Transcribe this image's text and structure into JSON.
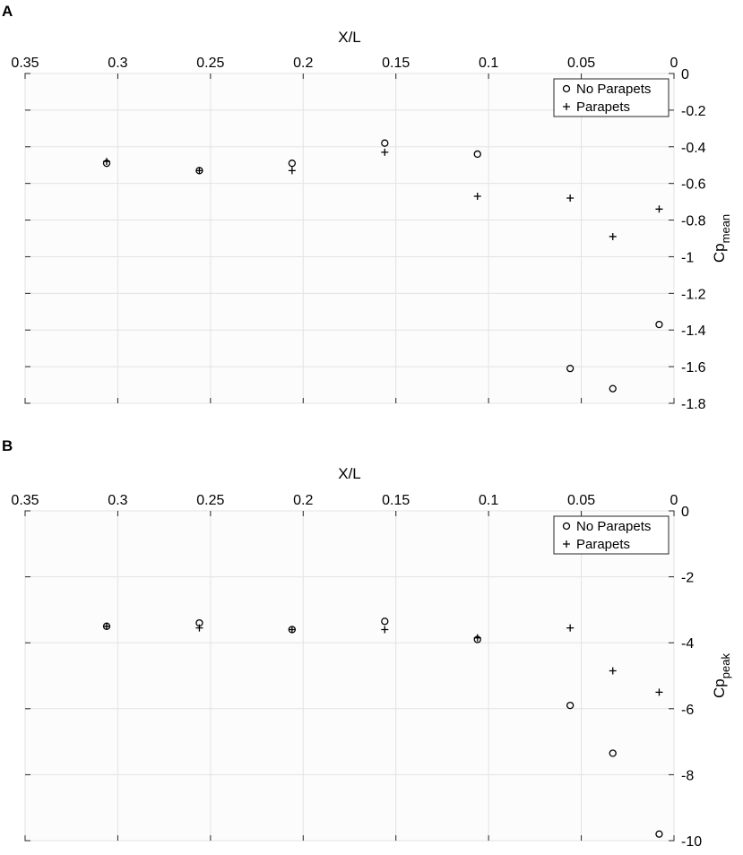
{
  "chart_data": [
    {
      "panel": "A",
      "type": "scatter",
      "xlabel": "X/L",
      "ylabel_base": "Cp",
      "ylabel_sub": "mean",
      "xlim": [
        0,
        0.35
      ],
      "x_reversed": true,
      "x_axis_position": "top",
      "y_axis_position": "right",
      "ylim": [
        -1.8,
        0
      ],
      "x_ticks": [
        "0.35",
        "0.3",
        "0.25",
        "0.2",
        "0.15",
        "0.1",
        "0.05",
        "0"
      ],
      "x_tick_values": [
        0.35,
        0.3,
        0.25,
        0.2,
        0.15,
        0.1,
        0.05,
        0
      ],
      "y_ticks": [
        "0",
        "-0.2",
        "-0.4",
        "-0.6",
        "-0.8",
        "-1",
        "-1.2",
        "-1.4",
        "-1.6",
        "-1.8"
      ],
      "y_tick_values": [
        0,
        -0.2,
        -0.4,
        -0.6,
        -0.8,
        -1,
        -1.2,
        -1.4,
        -1.6,
        -1.8
      ],
      "grid": true,
      "legend_position": "top-right",
      "series": [
        {
          "name": "No Parapets",
          "marker": "circle",
          "points": [
            {
              "x": 0.306,
              "y": -0.49
            },
            {
              "x": 0.256,
              "y": -0.53
            },
            {
              "x": 0.206,
              "y": -0.49
            },
            {
              "x": 0.156,
              "y": -0.38
            },
            {
              "x": 0.106,
              "y": -0.44
            },
            {
              "x": 0.056,
              "y": -1.61
            },
            {
              "x": 0.033,
              "y": -1.72
            },
            {
              "x": 0.008,
              "y": -1.37
            }
          ]
        },
        {
          "name": "Parapets",
          "marker": "plus",
          "points": [
            {
              "x": 0.306,
              "y": -0.48
            },
            {
              "x": 0.256,
              "y": -0.53
            },
            {
              "x": 0.206,
              "y": -0.53
            },
            {
              "x": 0.156,
              "y": -0.43
            },
            {
              "x": 0.106,
              "y": -0.67
            },
            {
              "x": 0.056,
              "y": -0.68
            },
            {
              "x": 0.033,
              "y": -0.89
            },
            {
              "x": 0.008,
              "y": -0.74
            }
          ]
        }
      ]
    },
    {
      "panel": "B",
      "type": "scatter",
      "xlabel": "X/L",
      "ylabel_base": "Cp",
      "ylabel_sub": "peak",
      "xlim": [
        0,
        0.35
      ],
      "x_reversed": true,
      "x_axis_position": "top",
      "y_axis_position": "right",
      "ylim": [
        -10,
        0
      ],
      "x_ticks": [
        "0.35",
        "0.3",
        "0.25",
        "0.2",
        "0.15",
        "0.1",
        "0.05",
        "0"
      ],
      "x_tick_values": [
        0.35,
        0.3,
        0.25,
        0.2,
        0.15,
        0.1,
        0.05,
        0
      ],
      "y_ticks": [
        "0",
        "-2",
        "-4",
        "-6",
        "-8",
        "-10"
      ],
      "y_tick_values": [
        0,
        -2,
        -4,
        -6,
        -8,
        -10
      ],
      "grid": true,
      "legend_position": "top-right",
      "series": [
        {
          "name": "No Parapets",
          "marker": "circle",
          "points": [
            {
              "x": 0.306,
              "y": -3.5
            },
            {
              "x": 0.256,
              "y": -3.4
            },
            {
              "x": 0.206,
              "y": -3.6
            },
            {
              "x": 0.156,
              "y": -3.35
            },
            {
              "x": 0.106,
              "y": -3.9
            },
            {
              "x": 0.056,
              "y": -5.9
            },
            {
              "x": 0.033,
              "y": -7.35
            },
            {
              "x": 0.008,
              "y": -9.8
            }
          ]
        },
        {
          "name": "Parapets",
          "marker": "plus",
          "points": [
            {
              "x": 0.306,
              "y": -3.5
            },
            {
              "x": 0.256,
              "y": -3.55
            },
            {
              "x": 0.206,
              "y": -3.6
            },
            {
              "x": 0.156,
              "y": -3.6
            },
            {
              "x": 0.106,
              "y": -3.85
            },
            {
              "x": 0.056,
              "y": -3.55
            },
            {
              "x": 0.033,
              "y": -4.85
            },
            {
              "x": 0.008,
              "y": -5.5
            }
          ]
        }
      ]
    }
  ]
}
